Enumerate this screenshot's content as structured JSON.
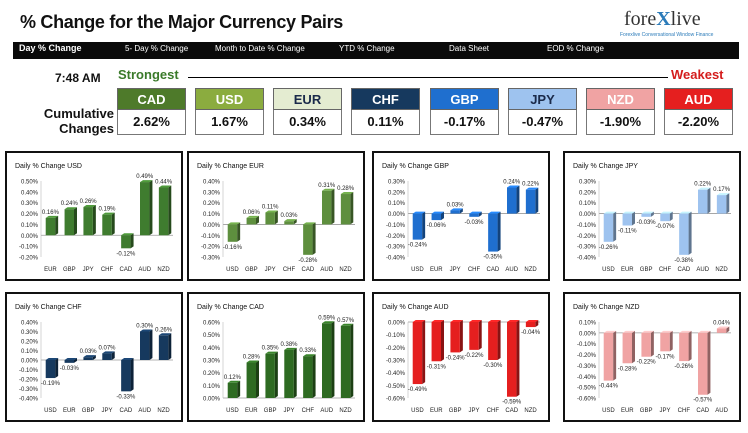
{
  "header": {
    "title": "% Change for the Major Currency Pairs",
    "logo_main_prefix": "fore",
    "logo_main_x": "X",
    "logo_main_suffix": "live",
    "logo_sub": "Forexlive Conversational Window Finance"
  },
  "nav": {
    "items": [
      "Day % Change",
      "5- Day % Change",
      "Month to Date % Change",
      "YTD % Change",
      "Data Sheet",
      "EOD % Change"
    ]
  },
  "summary": {
    "time": "7:48 AM",
    "strongest_label": "Strongest",
    "weakest_label": "Weakest",
    "cumulative_label_1": "Cumulative",
    "cumulative_label_2": "Changes",
    "currencies": [
      {
        "name": "CAD",
        "value": "2.62%",
        "color": "#4e7a2a"
      },
      {
        "name": "USD",
        "value": "1.67%",
        "color": "#8bac3f"
      },
      {
        "name": "EUR",
        "value": "0.34%",
        "color": "#e4ecd1",
        "text_color": "#1a2a4a"
      },
      {
        "name": "CHF",
        "value": "0.11%",
        "color": "#16395e"
      },
      {
        "name": "GBP",
        "value": "-0.17%",
        "color": "#1f6fcf"
      },
      {
        "name": "JPY",
        "value": "-0.47%",
        "color": "#9ec3ef",
        "text_color": "#1a2a4a"
      },
      {
        "name": "NZD",
        "value": "-1.90%",
        "color": "#f0a3a3"
      },
      {
        "name": "AUD",
        "value": "-2.20%",
        "color": "#e51f1f"
      }
    ]
  },
  "chart_data": [
    {
      "type": "bar",
      "title": "Daily % Change USD",
      "color": "#3f7c2f",
      "categories": [
        "EUR",
        "GBP",
        "JPY",
        "CHF",
        "CAD",
        "AUD",
        "NZD"
      ],
      "values": [
        0.16,
        0.24,
        0.26,
        0.19,
        -0.12,
        0.49,
        0.44
      ],
      "data_labels": [
        "0.16%",
        "0.24%",
        "0.26%",
        "0.19%",
        "-0.12%",
        "0.49%",
        "0.44%"
      ],
      "ylim": [
        -0.2,
        0.5
      ],
      "ticks": [
        "0.50%",
        "0.40%",
        "0.30%",
        "0.20%",
        "0.10%",
        "0.00%",
        "-0.10%",
        "-0.20%"
      ]
    },
    {
      "type": "bar",
      "title": "Daily % Change EUR",
      "color": "#5e8f3e",
      "categories": [
        "USD",
        "GBP",
        "JPY",
        "CHF",
        "CAD",
        "AUD",
        "NZD"
      ],
      "values": [
        -0.16,
        0.06,
        0.11,
        0.03,
        -0.28,
        0.31,
        0.28
      ],
      "data_labels": [
        "-0.16%",
        "0.06%",
        "0.11%",
        "0.03%",
        "-0.28%",
        "0.31%",
        "0.28%"
      ],
      "ylim": [
        -0.3,
        0.4
      ],
      "ticks": [
        "0.40%",
        "0.30%",
        "0.20%",
        "0.10%",
        "0.00%",
        "-0.10%",
        "-0.20%",
        "-0.30%"
      ]
    },
    {
      "type": "bar",
      "title": "Daily % Change GBP",
      "color": "#1f6fcf",
      "categories": [
        "USD",
        "EUR",
        "JPY",
        "CHF",
        "CAD",
        "AUD",
        "NZD"
      ],
      "values": [
        -0.24,
        -0.06,
        0.03,
        -0.03,
        -0.35,
        0.24,
        0.22
      ],
      "data_labels": [
        "-0.24%",
        "-0.06%",
        "0.03%",
        "-0.03%",
        "-0.35%",
        "0.24%",
        "0.22%"
      ],
      "ylim": [
        -0.4,
        0.3
      ],
      "ticks": [
        "0.30%",
        "0.20%",
        "0.10%",
        "0.00%",
        "-0.10%",
        "-0.20%",
        "-0.30%",
        "-0.40%"
      ]
    },
    {
      "type": "bar",
      "title": "Daily % Change JPY",
      "color": "#9ec3ef",
      "categories": [
        "USD",
        "EUR",
        "GBP",
        "CHF",
        "CAD",
        "AUD",
        "NZD"
      ],
      "values": [
        -0.26,
        -0.11,
        -0.03,
        -0.07,
        -0.38,
        0.22,
        0.17
      ],
      "data_labels": [
        "-0.26%",
        "-0.11%",
        "-0.03%",
        "-0.07%",
        "-0.38%",
        "0.22%",
        "0.17%"
      ],
      "ylim": [
        -0.4,
        0.3
      ],
      "ticks": [
        "0.30%",
        "0.20%",
        "0.10%",
        "0.00%",
        "-0.10%",
        "-0.20%",
        "-0.30%",
        "-0.40%"
      ]
    },
    {
      "type": "bar",
      "title": "Daily % Change CHF",
      "color": "#16395e",
      "categories": [
        "USD",
        "EUR",
        "GBP",
        "JPY",
        "CAD",
        "AUD",
        "NZD"
      ],
      "values": [
        -0.19,
        -0.03,
        0.03,
        0.07,
        -0.33,
        0.3,
        0.26
      ],
      "data_labels": [
        "-0.19%",
        "-0.03%",
        "0.03%",
        "0.07%",
        "-0.33%",
        "0.30%",
        "0.26%"
      ],
      "ylim": [
        -0.4,
        0.4
      ],
      "ticks": [
        "0.40%",
        "0.30%",
        "0.20%",
        "0.10%",
        "0.00%",
        "-0.10%",
        "-0.20%",
        "-0.30%",
        "-0.40%"
      ]
    },
    {
      "type": "bar",
      "title": "Daily % Change CAD",
      "color": "#2e6b22",
      "categories": [
        "USD",
        "EUR",
        "GBP",
        "JPY",
        "CHF",
        "AUD",
        "NZD"
      ],
      "values": [
        0.12,
        0.28,
        0.35,
        0.38,
        0.33,
        0.59,
        0.57
      ],
      "data_labels": [
        "0.12%",
        "0.28%",
        "0.35%",
        "0.38%",
        "0.33%",
        "0.59%",
        "0.57%"
      ],
      "ylim": [
        0.0,
        0.6
      ],
      "ticks": [
        "0.60%",
        "0.50%",
        "0.40%",
        "0.30%",
        "0.20%",
        "0.10%",
        "0.00%"
      ]
    },
    {
      "type": "bar",
      "title": "Daily % Change AUD",
      "color": "#e51f1f",
      "categories": [
        "USD",
        "EUR",
        "GBP",
        "JPY",
        "CHF",
        "CAD",
        "NZD"
      ],
      "values": [
        -0.49,
        -0.31,
        -0.24,
        -0.22,
        -0.3,
        -0.59,
        -0.04
      ],
      "data_labels": [
        "-0.49%",
        "-0.31%",
        "-0.24%",
        "-0.22%",
        "-0.30%",
        "-0.59%",
        "-0.04%"
      ],
      "ylim": [
        -0.6,
        0.0
      ],
      "ticks": [
        "0.00%",
        "-0.10%",
        "-0.20%",
        "-0.30%",
        "-0.40%",
        "-0.50%",
        "-0.60%"
      ]
    },
    {
      "type": "bar",
      "title": "Daily % Change NZD",
      "color": "#f0a3a3",
      "categories": [
        "USD",
        "EUR",
        "GBP",
        "JPY",
        "CHF",
        "CAD",
        "AUD"
      ],
      "values": [
        -0.44,
        -0.28,
        -0.22,
        -0.17,
        -0.26,
        -0.57,
        0.04
      ],
      "data_labels": [
        "-0.44%",
        "-0.28%",
        "-0.22%",
        "-0.17%",
        "-0.26%",
        "-0.57%",
        "0.04%"
      ],
      "ylim": [
        -0.6,
        0.1
      ],
      "ticks": [
        "0.10%",
        "0.00%",
        "-0.10%",
        "-0.20%",
        "-0.30%",
        "-0.40%",
        "-0.50%",
        "-0.60%"
      ]
    }
  ]
}
